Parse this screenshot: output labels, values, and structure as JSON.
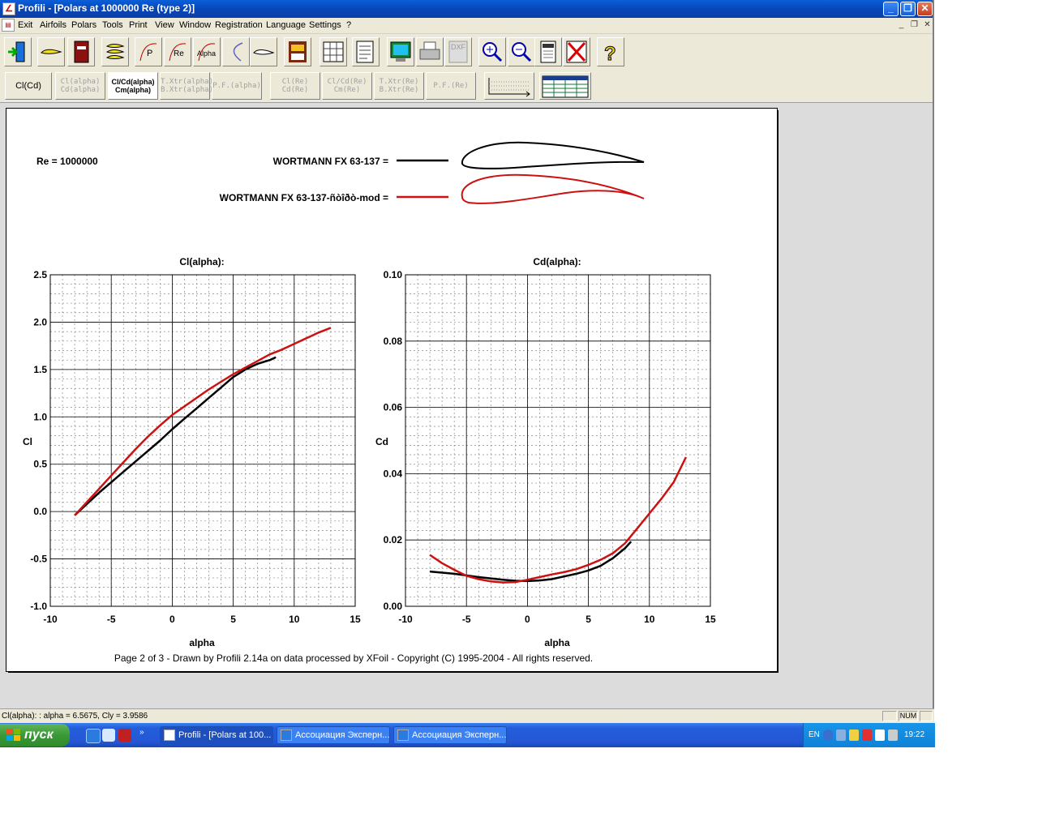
{
  "window": {
    "title": "Profili - [Polars at 1000000 Re (type 2)]",
    "min_glyph": "_",
    "max_glyph": "❐",
    "close_glyph": "✕"
  },
  "menu": [
    "Exit",
    "Airfoils",
    "Polars",
    "Tools",
    "Print",
    "View",
    "Window",
    "Registration",
    "Language",
    "Settings",
    "?"
  ],
  "mdi": {
    "min": "_",
    "restore": "❐",
    "close": "✕"
  },
  "toolbar2": [
    {
      "line1": "Cl(Cd)",
      "line2": "",
      "active": true,
      "pressed": false
    },
    {
      "line1": "Cl(alpha)",
      "line2": "Cd(alpha)",
      "active": false,
      "pressed": false
    },
    {
      "line1": "Cl/Cd(alpha)",
      "line2": "Cm(alpha)",
      "active": true,
      "pressed": true
    },
    {
      "line1": "T.Xtr(alpha)",
      "line2": "B.Xtr(alpha)",
      "active": false,
      "pressed": false
    },
    {
      "line1": "P.F.(alpha)",
      "line2": "",
      "active": false,
      "pressed": false
    },
    {
      "line1": "Cl(Re)",
      "line2": "Cd(Re)",
      "active": false,
      "pressed": false
    },
    {
      "line1": "Cl/Cd(Re)",
      "line2": "Cm(Re)",
      "active": false,
      "pressed": false
    },
    {
      "line1": "T.Xtr(Re)",
      "line2": "B.Xtr(Re)",
      "active": false,
      "pressed": false
    },
    {
      "line1": "P.F.(Re)",
      "line2": "",
      "active": false,
      "pressed": false
    }
  ],
  "toolbar1_icons": [
    "exit-icon",
    "airfoil-icon",
    "book-icon",
    "stacked-airfoils-icon",
    "polar-p-icon",
    "polar-re-icon",
    "polar-alpha-icon",
    "polar-curve-icon",
    "airfoil-outline-icon",
    "print-preview-icon",
    "table-icon",
    "report-icon",
    "monitor-icon",
    "printer-icon",
    "dxf-icon",
    "zoom-in-icon",
    "zoom-out-icon",
    "calculator-icon",
    "cancel-icon",
    "help-icon"
  ],
  "toolbar1_labels": {
    "polar_p": "P",
    "polar_re": "Re",
    "polar_alpha": "Alpha",
    "dxf": "DXF"
  },
  "legend": {
    "re_label": "Re = 1000000",
    "entries": [
      {
        "label": "WORTMANN FX 63-137 =",
        "color": "#000000"
      },
      {
        "label": "WORTMANN FX 63-137-ñòîðò-mod =",
        "color": "#cc1111"
      }
    ]
  },
  "chart_data": [
    {
      "type": "line",
      "title": "Cl(alpha):",
      "xlabel": "alpha",
      "ylabel": "Cl",
      "xlim": [
        -10,
        15
      ],
      "ylim": [
        -1.0,
        2.5
      ],
      "xticks": [
        "-10",
        "-5",
        "0",
        "5",
        "10",
        "15"
      ],
      "yticks": [
        "-1.0",
        "-0.5",
        "0.0",
        "0.5",
        "1.0",
        "1.5",
        "2.0",
        "2.5"
      ],
      "grid": true,
      "series": [
        {
          "name": "WORTMANN FX 63-137",
          "color": "#000000",
          "x": [
            -8,
            -7,
            -6,
            -5,
            -4,
            -3,
            -2,
            -1,
            0,
            1,
            2,
            3,
            4,
            5,
            6,
            7,
            8,
            8.5
          ],
          "y": [
            -0.04,
            0.08,
            0.2,
            0.31,
            0.42,
            0.53,
            0.64,
            0.75,
            0.87,
            0.98,
            1.09,
            1.2,
            1.31,
            1.42,
            1.5,
            1.56,
            1.6,
            1.63
          ]
        },
        {
          "name": "WORTMANN FX 63-137-ñòîðò-mod",
          "color": "#cc1111",
          "x": [
            -8,
            -7,
            -6,
            -5,
            -4,
            -3,
            -2,
            -1,
            0,
            1,
            2,
            3,
            4,
            5,
            6,
            7,
            8,
            9,
            10,
            11,
            12,
            13
          ],
          "y": [
            -0.04,
            0.1,
            0.24,
            0.38,
            0.52,
            0.66,
            0.79,
            0.91,
            1.02,
            1.11,
            1.2,
            1.29,
            1.37,
            1.45,
            1.52,
            1.59,
            1.66,
            1.71,
            1.77,
            1.83,
            1.89,
            1.94
          ]
        }
      ]
    },
    {
      "type": "line",
      "title": "Cd(alpha):",
      "xlabel": "alpha",
      "ylabel": "Cd",
      "xlim": [
        -10,
        15
      ],
      "ylim": [
        0.0,
        0.1
      ],
      "xticks": [
        "-10",
        "-5",
        "0",
        "5",
        "10",
        "15"
      ],
      "yticks": [
        "0.00",
        "0.02",
        "0.04",
        "0.06",
        "0.08",
        "0.10"
      ],
      "grid": true,
      "series": [
        {
          "name": "WORTMANN FX 63-137",
          "color": "#000000",
          "x": [
            -8,
            -6,
            -4,
            -2,
            -1,
            0,
            1,
            2,
            3,
            4,
            5,
            6,
            7,
            8,
            8.5
          ],
          "y": [
            0.0105,
            0.0098,
            0.0088,
            0.008,
            0.0077,
            0.0076,
            0.0078,
            0.0082,
            0.009,
            0.0098,
            0.0108,
            0.0122,
            0.0145,
            0.0175,
            0.0195
          ]
        },
        {
          "name": "WORTMANN FX 63-137-ñòîðò-mod",
          "color": "#cc1111",
          "x": [
            -8,
            -7,
            -6,
            -5,
            -4,
            -3,
            -2,
            -1,
            0,
            1,
            2,
            3,
            4,
            5,
            6,
            7,
            8,
            9,
            10,
            11,
            12,
            13
          ],
          "y": [
            0.0155,
            0.013,
            0.011,
            0.0092,
            0.0082,
            0.0075,
            0.0072,
            0.0073,
            0.008,
            0.0088,
            0.0096,
            0.0103,
            0.0112,
            0.0125,
            0.014,
            0.016,
            0.019,
            0.0235,
            0.028,
            0.0325,
            0.0375,
            0.045
          ]
        }
      ]
    }
  ],
  "footer": "Page 2 of 3   -   Drawn by Profili 2.14a on data processed by  XFoil - Copyright (C) 1995-2004 - All rights reserved.",
  "status": {
    "text": "Cl(alpha): : alpha = 6.5675, Cly = 3.9586",
    "num": "NUM"
  },
  "taskbar": {
    "start": "пуск",
    "tasks": [
      "Profili - [Polars at 100...",
      "Ассоциация Эксперн...",
      "Ассоциация Эксперн..."
    ],
    "lang": "EN",
    "clock": "19:22"
  }
}
